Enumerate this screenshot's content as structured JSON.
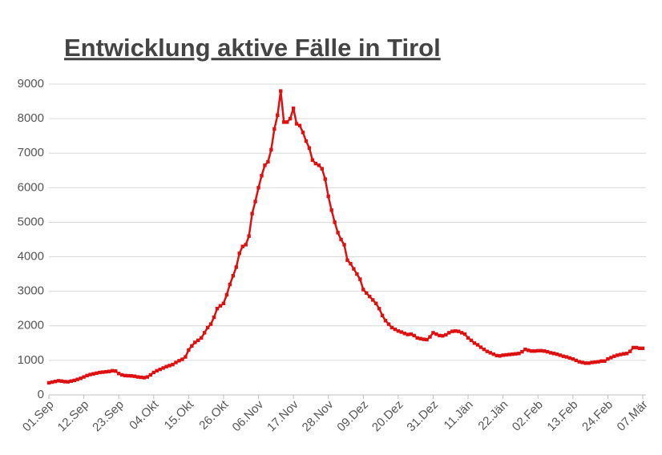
{
  "chart_data": {
    "type": "line",
    "title": "Entwicklung aktive Fälle in Tirol",
    "categories": [
      "01.Sep",
      null,
      null,
      null,
      null,
      null,
      null,
      null,
      null,
      null,
      null,
      "12.Sep",
      null,
      null,
      null,
      null,
      null,
      null,
      null,
      null,
      null,
      null,
      "23.Sep",
      null,
      null,
      null,
      null,
      null,
      null,
      null,
      null,
      null,
      null,
      "04.Okt",
      null,
      null,
      null,
      null,
      null,
      null,
      null,
      null,
      null,
      null,
      "15.Okt",
      null,
      null,
      null,
      null,
      null,
      null,
      null,
      null,
      null,
      null,
      "26.Okt",
      null,
      null,
      null,
      null,
      null,
      null,
      null,
      null,
      null,
      null,
      "06.Nov",
      null,
      null,
      null,
      null,
      null,
      null,
      null,
      null,
      null,
      null,
      "17.Nov",
      null,
      null,
      null,
      null,
      null,
      null,
      null,
      null,
      null,
      null,
      "28.Nov",
      null,
      null,
      null,
      null,
      null,
      null,
      null,
      null,
      null,
      null,
      "09.Dez",
      null,
      null,
      null,
      null,
      null,
      null,
      null,
      null,
      null,
      null,
      "20.Dez",
      null,
      null,
      null,
      null,
      null,
      null,
      null,
      null,
      null,
      null,
      "31.Dez",
      null,
      null,
      null,
      null,
      null,
      null,
      null,
      null,
      null,
      null,
      "11.Jän",
      null,
      null,
      null,
      null,
      null,
      null,
      null,
      null,
      null,
      null,
      "22.Jän",
      null,
      null,
      null,
      null,
      null,
      null,
      null,
      null,
      null,
      null,
      "02.Feb",
      null,
      null,
      null,
      null,
      null,
      null,
      null,
      null,
      null,
      null,
      "13.Feb",
      null,
      null,
      null,
      null,
      null,
      null,
      null,
      null,
      null,
      null,
      "24.Feb",
      null,
      null,
      null,
      null,
      null,
      null,
      null,
      null,
      null,
      null,
      "07.Mär"
    ],
    "series": [
      {
        "color": "#dd1111",
        "values": [
          350,
          370,
          390,
          410,
          400,
          385,
          380,
          400,
          420,
          450,
          480,
          520,
          560,
          590,
          610,
          630,
          650,
          660,
          670,
          680,
          700,
          690,
          620,
          580,
          560,
          555,
          550,
          540,
          520,
          510,
          500,
          520,
          580,
          650,
          700,
          740,
          780,
          820,
          850,
          880,
          940,
          990,
          1030,
          1100,
          1300,
          1420,
          1520,
          1580,
          1650,
          1800,
          1950,
          2050,
          2250,
          2500,
          2580,
          2650,
          2900,
          3200,
          3450,
          3700,
          4100,
          4300,
          4350,
          4600,
          5250,
          5600,
          6000,
          6350,
          6650,
          6750,
          7100,
          7700,
          8100,
          8800,
          7900,
          7900,
          8000,
          8300,
          7850,
          7800,
          7600,
          7350,
          7150,
          6800,
          6700,
          6650,
          6550,
          6250,
          5750,
          5350,
          5000,
          4700,
          4500,
          4350,
          3900,
          3800,
          3650,
          3500,
          3350,
          3050,
          2950,
          2850,
          2750,
          2650,
          2500,
          2300,
          2150,
          2050,
          1950,
          1900,
          1850,
          1820,
          1780,
          1750,
          1760,
          1720,
          1650,
          1630,
          1610,
          1600,
          1680,
          1800,
          1760,
          1720,
          1710,
          1740,
          1800,
          1840,
          1850,
          1840,
          1800,
          1760,
          1650,
          1580,
          1500,
          1450,
          1380,
          1320,
          1260,
          1220,
          1180,
          1140,
          1130,
          1150,
          1160,
          1170,
          1180,
          1190,
          1200,
          1250,
          1320,
          1290,
          1270,
          1270,
          1280,
          1280,
          1270,
          1250,
          1220,
          1200,
          1180,
          1150,
          1120,
          1100,
          1070,
          1040,
          1000,
          960,
          940,
          920,
          920,
          940,
          950,
          960,
          980,
          980,
          1040,
          1080,
          1120,
          1150,
          1170,
          1190,
          1200,
          1260,
          1370,
          1370,
          1350,
          1350
        ]
      }
    ],
    "ylim": [
      0,
      9000
    ],
    "yticks": [
      0,
      1000,
      2000,
      3000,
      4000,
      5000,
      6000,
      7000,
      8000,
      9000
    ],
    "grid": true
  }
}
